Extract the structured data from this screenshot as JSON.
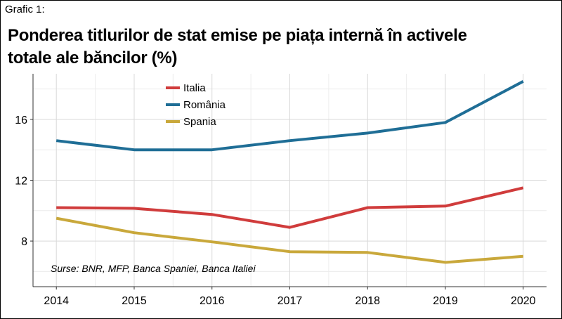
{
  "caption": "Grafic 1:",
  "title": "Ponderea titlurilor de stat emise pe piața internă în activele totale ale băncilor (%)",
  "source_note": "Surse: BNR, MFP, Banca Spaniei, Banca Italiei",
  "chart_data": {
    "type": "line",
    "title": "Ponderea titlurilor de stat emise pe piața internă în activele totale ale băncilor (%)",
    "xlabel": "",
    "ylabel": "",
    "x": [
      2014,
      2015,
      2016,
      2017,
      2018,
      2019,
      2020
    ],
    "x_tick_labels": [
      "2014",
      "2015",
      "2016",
      "2017",
      "2018",
      "2019",
      "2020"
    ],
    "y_ticks": [
      8,
      12,
      16
    ],
    "y_tick_labels": [
      "8",
      "12",
      "16"
    ],
    "ylim": [
      5.0,
      19.0
    ],
    "xlim": [
      2013.7,
      2020.3
    ],
    "grid": true,
    "legend_position": "top-left",
    "series": [
      {
        "name": "Italia",
        "color": "#d03c3c",
        "values": [
          10.2,
          10.15,
          9.75,
          8.9,
          10.2,
          10.3,
          11.5
        ]
      },
      {
        "name": "România",
        "color": "#1f6e96",
        "values": [
          14.6,
          14.0,
          14.0,
          14.6,
          15.1,
          15.8,
          18.5
        ]
      },
      {
        "name": "Spania",
        "color": "#c9a83b",
        "values": [
          9.5,
          8.55,
          7.95,
          7.3,
          7.25,
          6.6,
          7.0
        ]
      }
    ]
  }
}
